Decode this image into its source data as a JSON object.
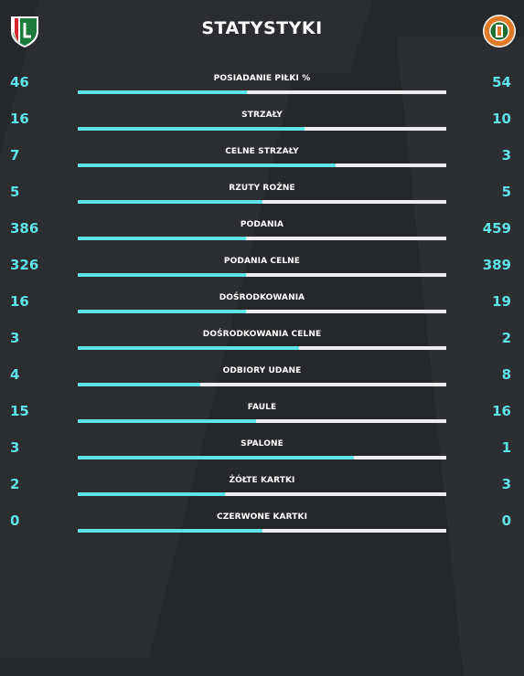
{
  "title": "STATYSTYKI",
  "teams": {
    "home": {
      "logo_icon": "legia-crest-icon",
      "colors": [
        "#1c7a3a",
        "#ffffff",
        "#d6262c"
      ]
    },
    "away": {
      "logo_icon": "zaglebie-crest-icon",
      "colors": [
        "#e07a28",
        "#1f6e34",
        "#ffffff"
      ]
    }
  },
  "accent_color": "#5fe3e7",
  "stats": [
    {
      "label": "POSIADANIE PIŁKI %",
      "home": "46",
      "away": "54",
      "home_share": 0.46
    },
    {
      "label": "STRZAŁY",
      "home": "16",
      "away": "10",
      "home_share": 0.615
    },
    {
      "label": "CELNE STRZAŁY",
      "home": "7",
      "away": "3",
      "home_share": 0.7
    },
    {
      "label": "RZUTY ROŻNE",
      "home": "5",
      "away": "5",
      "home_share": 0.5
    },
    {
      "label": "PODANIA",
      "home": "386",
      "away": "459",
      "home_share": 0.457
    },
    {
      "label": "PODANIA CELNE",
      "home": "326",
      "away": "389",
      "home_share": 0.456
    },
    {
      "label": "DOŚRODKOWANIA",
      "home": "16",
      "away": "19",
      "home_share": 0.457
    },
    {
      "label": "DOŚRODKOWANIA CELNE",
      "home": "3",
      "away": "2",
      "home_share": 0.6
    },
    {
      "label": "ODBIORY UDANE",
      "home": "4",
      "away": "8",
      "home_share": 0.333
    },
    {
      "label": "FAULE",
      "home": "15",
      "away": "16",
      "home_share": 0.484
    },
    {
      "label": "SPALONE",
      "home": "3",
      "away": "1",
      "home_share": 0.75
    },
    {
      "label": "ŻÓŁTE KARTKI",
      "home": "2",
      "away": "3",
      "home_share": 0.4
    },
    {
      "label": "CZERWONE KARTKI",
      "home": "0",
      "away": "0",
      "home_share": 0.5
    }
  ]
}
